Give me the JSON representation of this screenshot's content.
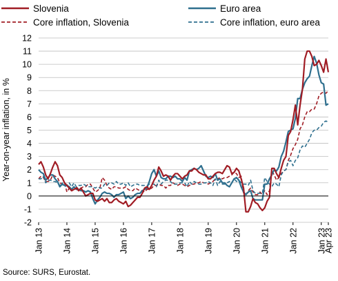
{
  "chart_data": {
    "type": "line",
    "title": "",
    "xlabel": "",
    "ylabel": "Year-on-year inflation, in %",
    "ylim": [
      -2,
      12
    ],
    "yticks": [
      -2,
      -1,
      0,
      1,
      2,
      3,
      4,
      5,
      6,
      7,
      8,
      9,
      10,
      11,
      12
    ],
    "xticks": [
      "Jan 13",
      "Jan 14",
      "Jan 15",
      "Jan 16",
      "Jan 17",
      "Jan 18",
      "Jan 19",
      "Jan 20",
      "Jan 21",
      "Jan 22",
      "Jan 23",
      "Apr 23"
    ],
    "grid": "horizontal",
    "legend_position": "top",
    "source": "Source: SURS, Eurostat.",
    "series": [
      {
        "name": "Slovenia",
        "color": "#a01c24",
        "style": "solid",
        "x_start": "2013-01",
        "values": [
          2.4,
          2.6,
          2.2,
          1.6,
          1.3,
          1.7,
          2.2,
          2.6,
          2.3,
          1.6,
          1.4,
          1.0,
          0.8,
          0.6,
          0.4,
          0.5,
          0.6,
          0.4,
          0.6,
          0.3,
          0.0,
          0.1,
          0.2,
          0.2,
          -0.3,
          -0.4,
          -0.3,
          -0.2,
          -0.4,
          -0.2,
          -0.5,
          -0.5,
          -0.3,
          -0.2,
          -0.4,
          -0.5,
          -0.6,
          -0.4,
          -0.8,
          -0.7,
          -0.5,
          -0.3,
          -0.1,
          -0.1,
          0.2,
          0.6,
          0.7,
          0.5,
          0.8,
          1.2,
          1.5,
          2.2,
          1.9,
          1.5,
          1.6,
          1.5,
          1.2,
          1.5,
          1.7,
          1.7,
          1.5,
          1.3,
          1.5,
          1.6,
          1.9,
          1.9,
          2.1,
          2.0,
          1.8,
          1.7,
          1.6,
          1.6,
          1.3,
          1.3,
          1.5,
          1.7,
          1.8,
          1.8,
          1.7,
          2.0,
          2.3,
          2.2,
          1.7,
          1.8,
          2.1,
          1.9,
          1.3,
          0.6,
          -1.2,
          -1.2,
          -0.8,
          -0.2,
          -0.5,
          -0.6,
          -0.9,
          -1.1,
          -0.9,
          -0.4,
          -0.1,
          2.1,
          2.1,
          1.7,
          1.4,
          2.1,
          2.7,
          3.0,
          4.6,
          4.9,
          5.8,
          6.9,
          5.4,
          6.9,
          8.1,
          10.4,
          11.0,
          11.0,
          10.6,
          9.9,
          10.0,
          10.3,
          9.9,
          9.4,
          10.4,
          9.4
        ]
      },
      {
        "name": "Euro area",
        "color": "#2e6f8e",
        "style": "solid",
        "x_start": "2013-01",
        "values": [
          2.0,
          1.8,
          1.7,
          1.2,
          1.4,
          1.6,
          1.6,
          1.3,
          1.1,
          0.7,
          0.9,
          0.8,
          0.8,
          0.7,
          0.5,
          0.7,
          0.5,
          0.5,
          0.4,
          0.4,
          0.3,
          0.4,
          0.3,
          -0.2,
          -0.6,
          -0.3,
          -0.1,
          0.2,
          0.3,
          0.2,
          0.2,
          0.1,
          -0.1,
          0.1,
          0.1,
          0.2,
          0.3,
          -0.2,
          0.0,
          -0.2,
          -0.1,
          0.1,
          0.2,
          0.2,
          0.4,
          0.5,
          0.6,
          1.1,
          1.7,
          2.0,
          1.5,
          1.9,
          1.4,
          1.3,
          1.3,
          1.5,
          1.5,
          1.4,
          1.5,
          1.3,
          1.3,
          1.1,
          1.4,
          1.2,
          1.9,
          2.0,
          2.1,
          2.0,
          2.1,
          2.3,
          1.9,
          1.5,
          1.4,
          1.5,
          1.4,
          1.7,
          1.2,
          1.3,
          1.0,
          1.0,
          0.8,
          0.7,
          1.0,
          1.3,
          1.4,
          1.2,
          0.7,
          0.3,
          0.1,
          0.3,
          0.4,
          -0.2,
          -0.3,
          -0.3,
          -0.3,
          -0.3,
          0.9,
          0.9,
          1.3,
          1.6,
          2.0,
          1.9,
          2.2,
          3.0,
          3.4,
          4.1,
          4.9,
          5.0,
          5.1,
          5.9,
          7.4,
          7.4,
          8.1,
          8.6,
          8.9,
          9.1,
          9.9,
          10.6,
          10.1,
          9.2,
          8.6,
          8.5,
          6.9,
          7.0
        ]
      },
      {
        "name": "Core inflation, Slovenia",
        "color": "#a01c24",
        "style": "dashed",
        "x_start": "2013-01",
        "values": [
          1.3,
          1.5,
          1.4,
          1.1,
          1.1,
          1.2,
          1.6,
          1.5,
          1.4,
          1.0,
          0.9,
          1.0,
          0.3,
          0.6,
          0.5,
          0.7,
          0.7,
          0.5,
          0.6,
          0.7,
          0.7,
          0.9,
          0.9,
          0.6,
          0.3,
          0.4,
          0.6,
          1.4,
          1.2,
          0.8,
          0.6,
          0.5,
          0.7,
          0.7,
          0.6,
          0.6,
          0.6,
          0.7,
          0.5,
          0.4,
          0.4,
          0.6,
          0.5,
          0.4,
          0.4,
          0.3,
          0.5,
          0.5,
          0.6,
          0.8,
          0.8,
          0.9,
          0.8,
          0.8,
          0.6,
          0.8,
          0.8,
          1.0,
          0.9,
          0.8,
          0.9,
          0.9,
          0.8,
          0.7,
          0.8,
          0.9,
          0.9,
          1.0,
          1.0,
          1.1,
          1.0,
          1.0,
          0.9,
          1.0,
          1.1,
          1.3,
          1.3,
          1.4,
          1.3,
          1.4,
          1.4,
          1.5,
          1.6,
          1.8,
          1.7,
          1.4,
          1.5,
          0.2,
          0.1,
          0.4,
          0.6,
          0.3,
          0.1,
          0.1,
          0.3,
          0.1,
          0.4,
          0.1,
          0.4,
          1.9,
          1.6,
          1.2,
          1.4,
          1.7,
          1.9,
          2.0,
          2.7,
          3.1,
          3.6,
          3.9,
          4.3,
          5.1,
          5.4,
          6.0,
          6.4,
          6.4,
          6.6,
          6.6,
          7.0,
          7.6,
          7.8,
          7.9,
          7.8,
          8.0
        ]
      },
      {
        "name": "Core inflation, euro area",
        "color": "#2e6f8e",
        "style": "dashed",
        "x_start": "2013-01",
        "values": [
          1.3,
          1.3,
          1.5,
          1.0,
          1.2,
          1.2,
          1.1,
          1.1,
          1.0,
          0.8,
          1.0,
          0.7,
          0.8,
          1.0,
          0.7,
          1.0,
          0.7,
          0.8,
          0.8,
          0.9,
          0.8,
          0.7,
          0.7,
          0.7,
          0.6,
          0.7,
          0.6,
          0.6,
          0.9,
          0.8,
          1.0,
          1.0,
          0.9,
          1.1,
          0.9,
          0.9,
          1.0,
          0.8,
          1.0,
          0.7,
          0.8,
          0.9,
          0.9,
          0.8,
          0.8,
          0.8,
          0.8,
          0.9,
          0.9,
          0.9,
          0.7,
          1.2,
          0.9,
          1.1,
          1.2,
          1.2,
          1.1,
          0.9,
          0.9,
          0.9,
          1.0,
          1.0,
          1.0,
          0.7,
          1.1,
          0.9,
          1.1,
          1.0,
          0.9,
          0.9,
          1.0,
          1.0,
          1.1,
          1.0,
          0.8,
          1.3,
          0.8,
          1.1,
          0.9,
          0.9,
          1.0,
          1.1,
          1.0,
          1.3,
          1.1,
          1.2,
          1.0,
          0.9,
          0.9,
          0.8,
          1.2,
          0.4,
          0.2,
          0.2,
          0.2,
          0.2,
          1.4,
          1.1,
          0.9,
          0.7,
          1.0,
          0.9,
          0.7,
          1.6,
          1.9,
          2.0,
          2.6,
          2.7,
          2.3,
          2.7,
          2.9,
          3.5,
          3.8,
          3.7,
          4.0,
          4.3,
          4.8,
          5.0,
          5.0,
          5.2,
          5.3,
          5.6,
          5.7,
          5.6
        ]
      }
    ]
  }
}
